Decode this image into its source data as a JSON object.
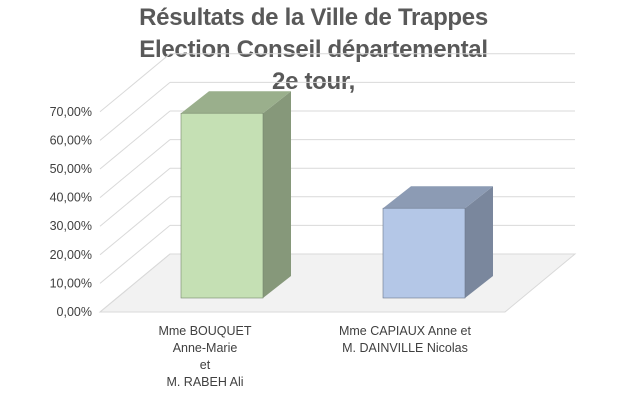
{
  "chart_data": {
    "type": "bar",
    "title": [
      "Résultats de la Ville de Trappes",
      "Election Conseil départemental",
      "2e tour,"
    ],
    "categories": [
      "Mme BOUQUET\nAnne-Marie\net\nM. RABEH Ali",
      "Mme CAPIAUX Anne et\nM. DAINVILLE Nicolas"
    ],
    "values": [
      67.3,
      32.7
    ],
    "colors": [
      "#c5e0b4",
      "#b4c7e7"
    ],
    "ylim": [
      0,
      70
    ],
    "yticks": [
      "0,00%",
      "10,00%",
      "20,00%",
      "30,00%",
      "40,00%",
      "50,00%",
      "60,00%",
      "70,00%"
    ],
    "xlabel": "",
    "ylabel": "",
    "grid": true,
    "legend": "none"
  }
}
